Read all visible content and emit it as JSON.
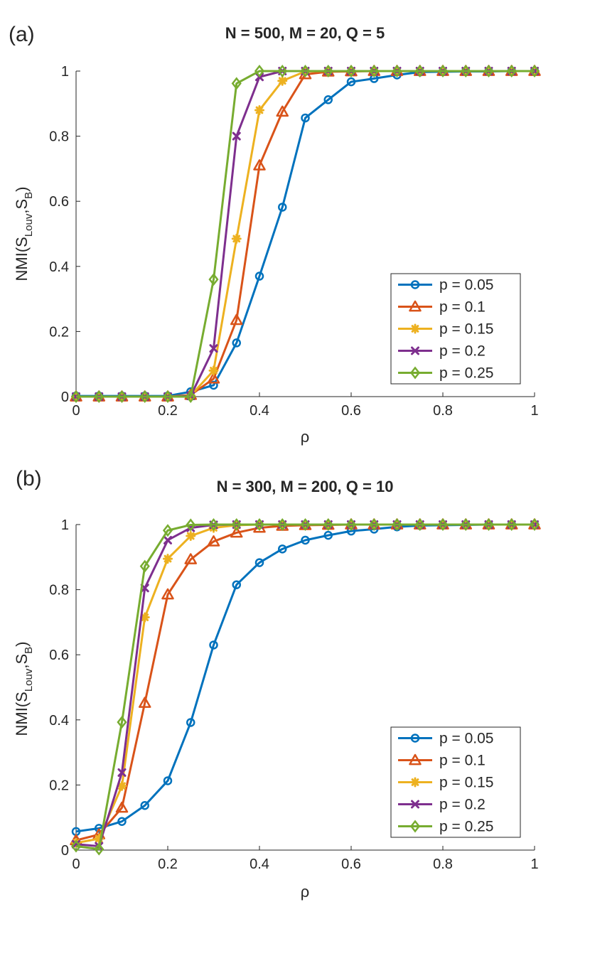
{
  "chart_data": [
    {
      "panel_label": "(a)",
      "type": "line",
      "title": "N = 500, M = 20, Q = 5",
      "xlabel": "ρ",
      "ylabel": {
        "base": "NMI(S",
        "sub1": "Louv",
        "mid": ",S",
        "sub2": "B",
        "end": ")"
      },
      "xlim": [
        0,
        1
      ],
      "ylim": [
        0,
        1
      ],
      "xticks": [
        "0",
        "0.2",
        "0.4",
        "0.6",
        "0.8",
        "1"
      ],
      "yticks": [
        "0",
        "0.2",
        "0.4",
        "0.6",
        "0.8",
        "1"
      ],
      "legend_position": "lower-right",
      "x": [
        0,
        0.05,
        0.1,
        0.15,
        0.2,
        0.25,
        0.3,
        0.35,
        0.4,
        0.45,
        0.5,
        0.55,
        0.6,
        0.65,
        0.7,
        0.75,
        0.8,
        0.85,
        0.9,
        0.95,
        1
      ],
      "series": [
        {
          "name": "p = 0.05",
          "color": "#0072BD",
          "marker": "circle",
          "values": [
            0.002,
            0.002,
            0.002,
            0.002,
            0.002,
            0.015,
            0.035,
            0.165,
            0.37,
            0.582,
            0.856,
            0.912,
            0.967,
            0.977,
            0.988,
            0.997,
            0.998,
            0.999,
            0.999,
            1.0,
            1.0
          ]
        },
        {
          "name": "p = 0.1",
          "color": "#D95319",
          "marker": "triangle",
          "values": [
            0.0,
            0.0,
            0.0,
            0.0,
            0.0,
            0.005,
            0.055,
            0.235,
            0.71,
            0.875,
            0.99,
            0.998,
            0.999,
            1.0,
            1.0,
            1.0,
            1.0,
            1.0,
            1.0,
            1.0,
            1.0
          ]
        },
        {
          "name": "p = 0.15",
          "color": "#EDB120",
          "marker": "star",
          "values": [
            0.0,
            0.0,
            0.0,
            0.0,
            0.0,
            0.003,
            0.08,
            0.485,
            0.88,
            0.97,
            0.999,
            1.0,
            1.0,
            1.0,
            1.0,
            1.0,
            1.0,
            1.0,
            1.0,
            1.0,
            1.0
          ]
        },
        {
          "name": "p = 0.2",
          "color": "#7E2F8E",
          "marker": "x",
          "values": [
            0.0,
            0.0,
            0.0,
            0.0,
            0.0,
            0.002,
            0.148,
            0.8,
            0.982,
            1.0,
            1.0,
            1.0,
            1.0,
            1.0,
            1.0,
            1.0,
            1.0,
            1.0,
            1.0,
            1.0,
            1.0
          ]
        },
        {
          "name": "p = 0.25",
          "color": "#77AC30",
          "marker": "diamond",
          "values": [
            0.0,
            0.0,
            0.0,
            0.0,
            0.0,
            0.0,
            0.36,
            0.962,
            1.0,
            1.0,
            1.0,
            1.0,
            1.0,
            1.0,
            1.0,
            1.0,
            1.0,
            1.0,
            1.0,
            1.0,
            1.0
          ]
        }
      ]
    },
    {
      "panel_label": "(b)",
      "type": "line",
      "title": "N = 300, M = 200, Q = 10",
      "xlabel": "ρ",
      "ylabel": {
        "base": "NMI(S",
        "sub1": "Louv",
        "mid": ",S",
        "sub2": "B",
        "end": ")"
      },
      "xlim": [
        0,
        1
      ],
      "ylim": [
        0,
        1
      ],
      "xticks": [
        "0",
        "0.2",
        "0.4",
        "0.6",
        "0.8",
        "1"
      ],
      "yticks": [
        "0",
        "0.2",
        "0.4",
        "0.6",
        "0.8",
        "1"
      ],
      "legend_position": "lower-right",
      "x": [
        0,
        0.05,
        0.1,
        0.15,
        0.2,
        0.25,
        0.3,
        0.35,
        0.4,
        0.45,
        0.5,
        0.55,
        0.6,
        0.65,
        0.7,
        0.75,
        0.8,
        0.85,
        0.9,
        0.95,
        1
      ],
      "series": [
        {
          "name": "p = 0.05",
          "color": "#0072BD",
          "marker": "circle",
          "values": [
            0.057,
            0.067,
            0.088,
            0.137,
            0.213,
            0.392,
            0.63,
            0.815,
            0.883,
            0.925,
            0.952,
            0.967,
            0.98,
            0.986,
            0.993,
            0.997,
            0.998,
            0.999,
            1.0,
            1.0,
            1.0
          ]
        },
        {
          "name": "p = 0.1",
          "color": "#D95319",
          "marker": "triangle",
          "values": [
            0.03,
            0.048,
            0.13,
            0.452,
            0.785,
            0.893,
            0.948,
            0.975,
            0.99,
            0.996,
            0.998,
            0.999,
            1.0,
            1.0,
            1.0,
            1.0,
            1.0,
            1.0,
            1.0,
            1.0,
            1.0
          ]
        },
        {
          "name": "p = 0.15",
          "color": "#EDB120",
          "marker": "star",
          "values": [
            0.022,
            0.035,
            0.197,
            0.715,
            0.895,
            0.965,
            0.99,
            0.998,
            1.0,
            1.0,
            1.0,
            1.0,
            1.0,
            1.0,
            1.0,
            1.0,
            1.0,
            1.0,
            1.0,
            1.0,
            1.0
          ]
        },
        {
          "name": "p = 0.2",
          "color": "#7E2F8E",
          "marker": "x",
          "values": [
            0.018,
            0.012,
            0.238,
            0.805,
            0.952,
            0.99,
            0.999,
            1.0,
            1.0,
            1.0,
            1.0,
            1.0,
            1.0,
            1.0,
            1.0,
            1.0,
            1.0,
            1.0,
            1.0,
            1.0,
            1.0
          ]
        },
        {
          "name": "p = 0.25",
          "color": "#77AC30",
          "marker": "diamond",
          "values": [
            0.012,
            0.003,
            0.393,
            0.872,
            0.982,
            0.999,
            1.0,
            1.0,
            1.0,
            1.0,
            1.0,
            1.0,
            1.0,
            1.0,
            1.0,
            1.0,
            1.0,
            1.0,
            1.0,
            1.0,
            1.0
          ]
        }
      ]
    }
  ]
}
